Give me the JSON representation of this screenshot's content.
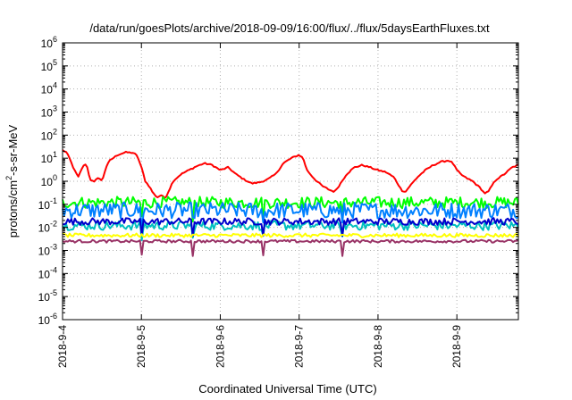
{
  "chart_data": {
    "type": "line",
    "title": "/data/run/goesPlots/archive/2018-09-09/16:00/flux/../flux/5daysEarthFluxes.txt",
    "xlabel": "Coordinated Universal Time (UTC)",
    "ylabel_parts": [
      "protons/cm",
      "2",
      "-s-sr-MeV"
    ],
    "yscale": "log",
    "ylim_exp": [
      -6,
      6
    ],
    "y_tick_exponents": [
      -6,
      -5,
      -4,
      -3,
      -2,
      -1,
      0,
      1,
      2,
      3,
      4,
      5,
      6
    ],
    "y_tick_base": "10",
    "xlim_days": [
      0,
      5.78
    ],
    "x_ticks": [
      {
        "label": "2018-9-4",
        "day": 0
      },
      {
        "label": "2018-9-5",
        "day": 1
      },
      {
        "label": "2018-9-6",
        "day": 2
      },
      {
        "label": "2018-9-7",
        "day": 3
      },
      {
        "label": "2018-9-8",
        "day": 4
      },
      {
        "label": "2018-9-9",
        "day": 5
      }
    ],
    "grid": true,
    "series": [
      {
        "color": "#ff0000",
        "noise": 0.06,
        "points": [
          [
            0,
            22
          ],
          [
            0.05,
            18
          ],
          [
            0.1,
            8
          ],
          [
            0.15,
            3
          ],
          [
            0.2,
            1.5
          ],
          [
            0.25,
            4
          ],
          [
            0.3,
            6
          ],
          [
            0.35,
            1.2
          ],
          [
            0.4,
            0.9
          ],
          [
            0.45,
            1.5
          ],
          [
            0.5,
            1.0
          ],
          [
            0.55,
            4
          ],
          [
            0.6,
            8
          ],
          [
            0.7,
            14
          ],
          [
            0.8,
            18
          ],
          [
            0.9,
            17
          ],
          [
            0.95,
            12
          ],
          [
            1.0,
            4
          ],
          [
            1.05,
            1
          ],
          [
            1.1,
            0.6
          ],
          [
            1.15,
            0.3
          ],
          [
            1.2,
            0.2
          ],
          [
            1.25,
            0.25
          ],
          [
            1.3,
            0.18
          ],
          [
            1.35,
            0.4
          ],
          [
            1.4,
            1.0
          ],
          [
            1.5,
            2
          ],
          [
            1.6,
            3
          ],
          [
            1.7,
            4.5
          ],
          [
            1.8,
            6
          ],
          [
            1.9,
            5
          ],
          [
            2.0,
            3
          ],
          [
            2.1,
            4
          ],
          [
            2.2,
            2
          ],
          [
            2.3,
            1.2
          ],
          [
            2.4,
            0.8
          ],
          [
            2.5,
            0.9
          ],
          [
            2.6,
            1.2
          ],
          [
            2.7,
            2
          ],
          [
            2.8,
            6
          ],
          [
            2.9,
            10
          ],
          [
            3.0,
            14
          ],
          [
            3.05,
            10
          ],
          [
            3.1,
            3
          ],
          [
            3.2,
            1.2
          ],
          [
            3.3,
            0.6
          ],
          [
            3.4,
            0.4
          ],
          [
            3.45,
            0.35
          ],
          [
            3.5,
            0.6
          ],
          [
            3.6,
            2
          ],
          [
            3.7,
            4
          ],
          [
            3.8,
            5
          ],
          [
            3.9,
            4
          ],
          [
            4.0,
            3
          ],
          [
            4.1,
            2.5
          ],
          [
            4.2,
            1.5
          ],
          [
            4.25,
            0.8
          ],
          [
            4.3,
            0.4
          ],
          [
            4.35,
            0.35
          ],
          [
            4.4,
            0.6
          ],
          [
            4.5,
            1.5
          ],
          [
            4.6,
            3
          ],
          [
            4.7,
            5
          ],
          [
            4.8,
            7
          ],
          [
            4.9,
            8
          ],
          [
            4.95,
            6
          ],
          [
            5.0,
            3
          ],
          [
            5.05,
            2
          ],
          [
            5.1,
            1.5
          ],
          [
            5.2,
            1.0
          ],
          [
            5.3,
            0.5
          ],
          [
            5.35,
            0.3
          ],
          [
            5.4,
            0.35
          ],
          [
            5.45,
            0.7
          ],
          [
            5.5,
            1.2
          ],
          [
            5.6,
            2
          ],
          [
            5.7,
            4
          ],
          [
            5.78,
            5
          ]
        ]
      },
      {
        "color": "#00ff00",
        "base": 0.12,
        "noise": 0.25,
        "dips": [
          1.0,
          1.65,
          2.55,
          3.55
        ]
      },
      {
        "color": "#0080ff",
        "base": 0.055,
        "noise": 0.35,
        "dips": [
          1.0,
          1.65,
          2.55,
          3.55
        ]
      },
      {
        "color": "#00c0c0",
        "base": 0.012,
        "noise": 0.2,
        "dips": [
          1.0,
          1.65,
          2.55,
          3.55
        ]
      },
      {
        "color": "#0000cc",
        "base": 0.018,
        "noise": 0.15,
        "dips": [
          1.0,
          1.65,
          2.55,
          3.55
        ]
      },
      {
        "color": "#ffff00",
        "base": 0.0045,
        "noise": 0.08,
        "dips": []
      },
      {
        "color": "#993366",
        "base": 0.0025,
        "noise": 0.06,
        "dips": [
          1.0,
          1.65,
          2.55,
          3.55
        ]
      }
    ]
  }
}
